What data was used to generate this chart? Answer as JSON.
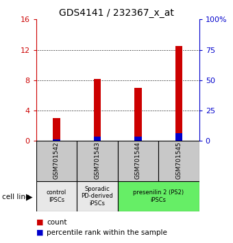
{
  "title": "GDS4141 / 232367_x_at",
  "samples": [
    "GSM701542",
    "GSM701543",
    "GSM701544",
    "GSM701545"
  ],
  "count_values": [
    3.0,
    8.2,
    7.0,
    12.5
  ],
  "percentile_values": [
    1.5,
    3.8,
    3.8,
    6.5
  ],
  "left_ylim": [
    0,
    16
  ],
  "right_ylim": [
    0,
    100
  ],
  "left_yticks": [
    0,
    4,
    8,
    12,
    16
  ],
  "right_yticks": [
    0,
    25,
    50,
    75,
    100
  ],
  "left_ycolor": "#cc0000",
  "right_ycolor": "#0000cc",
  "bar_color_red": "#cc0000",
  "bar_color_blue": "#0000cc",
  "bar_width": 0.18,
  "grid_yticks": [
    4,
    8,
    12
  ],
  "groups": [
    {
      "label": "control\nIPSCs",
      "samples": [
        0
      ],
      "color": "#e8e8e8"
    },
    {
      "label": "Sporadic\nPD-derived\niPSCs",
      "samples": [
        1
      ],
      "color": "#e8e8e8"
    },
    {
      "label": "presenilin 2 (PS2)\niPSCs",
      "samples": [
        2,
        3
      ],
      "color": "#66ee66"
    }
  ],
  "legend_items": [
    {
      "color": "#cc0000",
      "label": "count"
    },
    {
      "color": "#0000cc",
      "label": "percentile rank within the sample"
    }
  ],
  "cell_line_label": "cell line",
  "sample_box_color": "#c8c8c8",
  "right_ytick_labels": [
    "0",
    "25",
    "50",
    "75",
    "100%"
  ]
}
